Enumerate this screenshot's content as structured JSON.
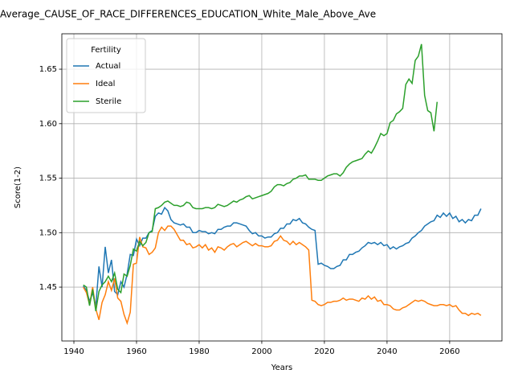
{
  "chart_data": {
    "type": "line",
    "title": "Average_CAUSE_OF_RACE_DIFFERENCES_EDUCATION_White_Male_Above_Ave",
    "xlabel": "Years",
    "ylabel": "Score(1-2)",
    "legend_title": "Fertility",
    "legend_loc": "upper left",
    "grid": true,
    "xlim": [
      1936.15,
      2076.7
    ],
    "ylim": [
      1.4006,
      1.6825
    ],
    "xticks": [
      1940,
      1960,
      1980,
      2000,
      2020,
      2040,
      2060
    ],
    "yticks": [
      1.45,
      {
        "value": 1.5,
        "label": "1.50"
      },
      1.55,
      {
        "value": 1.6,
        "label": "1.60"
      },
      1.65
    ],
    "x": [
      1943,
      1944,
      1945,
      1946,
      1947,
      1948,
      1949,
      1950,
      1951,
      1952,
      1953,
      1954,
      1955,
      1956,
      1957,
      1958,
      1959,
      1960,
      1961,
      1962,
      1963,
      1964,
      1965,
      1966,
      1967,
      1968,
      1969,
      1970,
      1971,
      1972,
      1973,
      1974,
      1975,
      1976,
      1977,
      1978,
      1979,
      1980,
      1981,
      1982,
      1983,
      1984,
      1985,
      1986,
      1987,
      1988,
      1989,
      1990,
      1991,
      1992,
      1993,
      1994,
      1995,
      1996,
      1997,
      1998,
      1999,
      2000,
      2001,
      2002,
      2003,
      2004,
      2005,
      2006,
      2007,
      2008,
      2009,
      2010,
      2011,
      2012,
      2013,
      2014,
      2015,
      2016,
      2017,
      2018,
      2019,
      2020,
      2021,
      2022,
      2023,
      2024,
      2025,
      2026,
      2027,
      2028,
      2029,
      2030,
      2031,
      2032,
      2033,
      2034,
      2035,
      2036,
      2037,
      2038,
      2039,
      2040,
      2041,
      2042,
      2043,
      2044,
      2045,
      2046,
      2047,
      2048,
      2049,
      2050,
      2051,
      2052,
      2053,
      2054,
      2055,
      2056,
      2057,
      2058,
      2059,
      2060,
      2061,
      2062,
      2063,
      2064,
      2065,
      2066,
      2067,
      2068,
      2069,
      2070
    ],
    "series": [
      {
        "name": "Actual",
        "color": "#1f77b4",
        "values": [
          1.451,
          1.447,
          1.437,
          1.445,
          1.432,
          1.469,
          1.45,
          1.487,
          1.463,
          1.475,
          1.446,
          1.443,
          1.455,
          1.45,
          1.462,
          1.48,
          1.479,
          1.494,
          1.488,
          1.495,
          1.495,
          1.5,
          1.502,
          1.515,
          1.518,
          1.517,
          1.523,
          1.52,
          1.512,
          1.509,
          1.508,
          1.507,
          1.508,
          1.505,
          1.505,
          1.5,
          1.5,
          1.502,
          1.501,
          1.501,
          1.499,
          1.5,
          1.499,
          1.503,
          1.503,
          1.505,
          1.506,
          1.506,
          1.509,
          1.509,
          1.508,
          1.507,
          1.506,
          1.502,
          1.499,
          1.5,
          1.497,
          1.497,
          1.495,
          1.496,
          1.496,
          1.499,
          1.5,
          1.504,
          1.504,
          1.508,
          1.508,
          1.512,
          1.511,
          1.513,
          1.509,
          1.508,
          1.505,
          1.503,
          1.502,
          1.471,
          1.472,
          1.47,
          1.469,
          1.467,
          1.467,
          1.469,
          1.47,
          1.475,
          1.475,
          1.48,
          1.48,
          1.482,
          1.483,
          1.486,
          1.488,
          1.491,
          1.49,
          1.491,
          1.489,
          1.491,
          1.488,
          1.489,
          1.485,
          1.487,
          1.485,
          1.487,
          1.488,
          1.49,
          1.491,
          1.495,
          1.497,
          1.5,
          1.502,
          1.506,
          1.508,
          1.51,
          1.511,
          1.516,
          1.514,
          1.518,
          1.515,
          1.518,
          1.513,
          1.515,
          1.51,
          1.512,
          1.509,
          1.512,
          1.511,
          1.516,
          1.516,
          1.522
        ]
      },
      {
        "name": "Ideal",
        "color": "#ff7f0e",
        "values": [
          1.45,
          1.445,
          1.434,
          1.45,
          1.43,
          1.42,
          1.436,
          1.443,
          1.455,
          1.447,
          1.458,
          1.44,
          1.437,
          1.425,
          1.417,
          1.427,
          1.471,
          1.472,
          1.496,
          1.487,
          1.486,
          1.48,
          1.482,
          1.486,
          1.5,
          1.505,
          1.502,
          1.506,
          1.506,
          1.503,
          1.498,
          1.493,
          1.493,
          1.489,
          1.49,
          1.486,
          1.487,
          1.489,
          1.486,
          1.489,
          1.484,
          1.486,
          1.482,
          1.487,
          1.486,
          1.484,
          1.487,
          1.489,
          1.49,
          1.487,
          1.489,
          1.491,
          1.492,
          1.49,
          1.488,
          1.49,
          1.488,
          1.488,
          1.487,
          1.487,
          1.488,
          1.492,
          1.493,
          1.497,
          1.493,
          1.492,
          1.489,
          1.492,
          1.489,
          1.491,
          1.489,
          1.487,
          1.484,
          1.438,
          1.437,
          1.434,
          1.433,
          1.434,
          1.436,
          1.436,
          1.437,
          1.437,
          1.438,
          1.44,
          1.438,
          1.439,
          1.439,
          1.438,
          1.437,
          1.44,
          1.439,
          1.442,
          1.439,
          1.441,
          1.437,
          1.438,
          1.434,
          1.434,
          1.433,
          1.43,
          1.429,
          1.429,
          1.431,
          1.432,
          1.434,
          1.436,
          1.438,
          1.437,
          1.438,
          1.437,
          1.435,
          1.434,
          1.433,
          1.433,
          1.434,
          1.434,
          1.433,
          1.434,
          1.432,
          1.433,
          1.429,
          1.426,
          1.426,
          1.424,
          1.426,
          1.425,
          1.426,
          1.424
        ]
      },
      {
        "name": "Sterile",
        "color": "#2ca02c",
        "values": [
          1.452,
          1.45,
          1.433,
          1.448,
          1.428,
          1.446,
          1.452,
          1.455,
          1.46,
          1.455,
          1.463,
          1.448,
          1.445,
          1.462,
          1.46,
          1.47,
          1.485,
          1.483,
          1.492,
          1.488,
          1.491,
          1.5,
          1.501,
          1.522,
          1.523,
          1.525,
          1.528,
          1.529,
          1.527,
          1.525,
          1.525,
          1.524,
          1.525,
          1.528,
          1.527,
          1.523,
          1.522,
          1.522,
          1.522,
          1.523,
          1.523,
          1.522,
          1.523,
          1.526,
          1.525,
          1.524,
          1.525,
          1.527,
          1.529,
          1.528,
          1.53,
          1.531,
          1.533,
          1.534,
          1.531,
          1.532,
          1.533,
          1.534,
          1.535,
          1.536,
          1.538,
          1.542,
          1.544,
          1.544,
          1.543,
          1.545,
          1.546,
          1.549,
          1.55,
          1.552,
          1.552,
          1.553,
          1.549,
          1.549,
          1.549,
          1.548,
          1.548,
          1.55,
          1.552,
          1.553,
          1.554,
          1.554,
          1.552,
          1.555,
          1.56,
          1.563,
          1.565,
          1.566,
          1.567,
          1.568,
          1.572,
          1.575,
          1.573,
          1.578,
          1.584,
          1.591,
          1.589,
          1.591,
          1.601,
          1.603,
          1.609,
          1.611,
          1.614,
          1.636,
          1.641,
          1.637,
          1.658,
          1.662,
          1.673,
          1.626,
          1.612,
          1.61,
          1.593,
          1.62,
          null,
          null,
          null,
          null,
          null,
          null,
          null,
          null,
          null,
          null,
          null,
          null,
          null,
          null
        ]
      }
    ]
  }
}
